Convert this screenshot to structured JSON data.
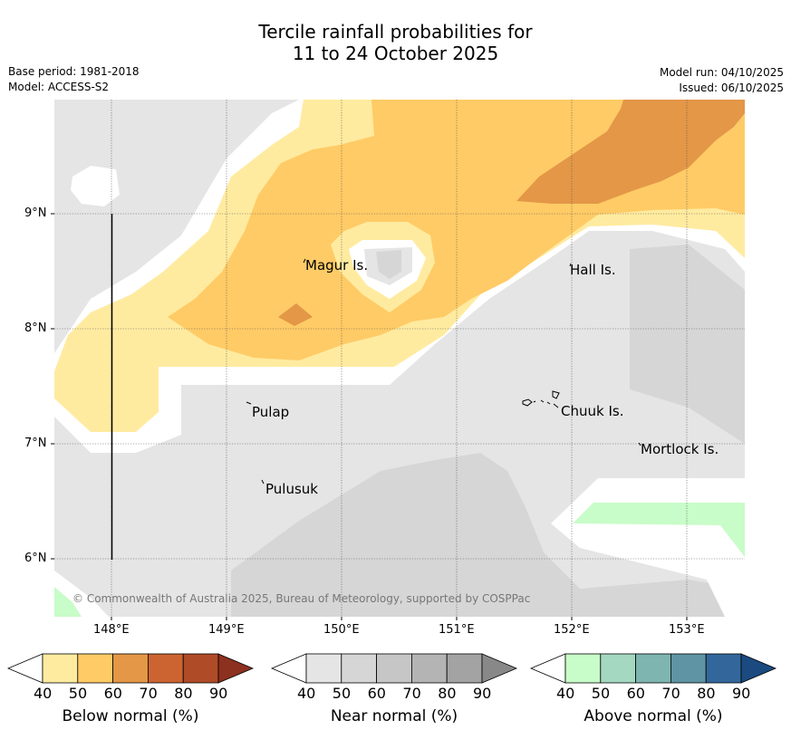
{
  "title_line1": "Tercile rainfall probabilities for",
  "title_line2": "11 to 24 October 2025",
  "meta_left": {
    "base_period": "Base period: 1981-2018",
    "model": "Model: ACCESS-S2"
  },
  "meta_right": {
    "model_run": "Model run: 04/10/2025",
    "issued": "Issued: 06/10/2025"
  },
  "x_ticks": [
    "148°E",
    "149°E",
    "150°E",
    "151°E",
    "152°E",
    "153°E"
  ],
  "y_ticks": [
    "9°N",
    "8°N",
    "7°N",
    "6°N"
  ],
  "places": [
    "Magur Is.",
    "Hall Is.",
    "Pulap",
    "Chuuk Is.",
    "Mortlock Is.",
    "Pulusuk"
  ],
  "copyright": "© Commonwealth of Australia 2025, Bureau of Meteorology, supported by COSPPac",
  "colorbars": [
    {
      "label": "Below normal (%)",
      "ticks": [
        "40",
        "50",
        "60",
        "70",
        "80",
        "90"
      ],
      "colors": [
        "#ffeba0",
        "#ffcb66",
        "#e39747",
        "#cc6432",
        "#b04b27",
        "#8c3020"
      ]
    },
    {
      "label": "Near normal (%)",
      "ticks": [
        "40",
        "50",
        "60",
        "70",
        "80",
        "90"
      ],
      "colors": [
        "#e5e5e5",
        "#d6d6d6",
        "#c6c6c6",
        "#b4b4b4",
        "#a3a3a3",
        "#888888"
      ]
    },
    {
      "label": "Above normal (%)",
      "ticks": [
        "40",
        "50",
        "60",
        "70",
        "80",
        "90"
      ],
      "colors": [
        "#c8fcc8",
        "#a4d8c0",
        "#7eb5b0",
        "#5e94a4",
        "#33679c",
        "#1a4a80"
      ]
    }
  ],
  "colors": {
    "below_40": "#ffeba0",
    "below_50": "#ffcb66",
    "below_60": "#e39747",
    "near_40": "#e5e5e5",
    "near_50": "#d6d6d6",
    "above_40": "#c8fcc8"
  }
}
